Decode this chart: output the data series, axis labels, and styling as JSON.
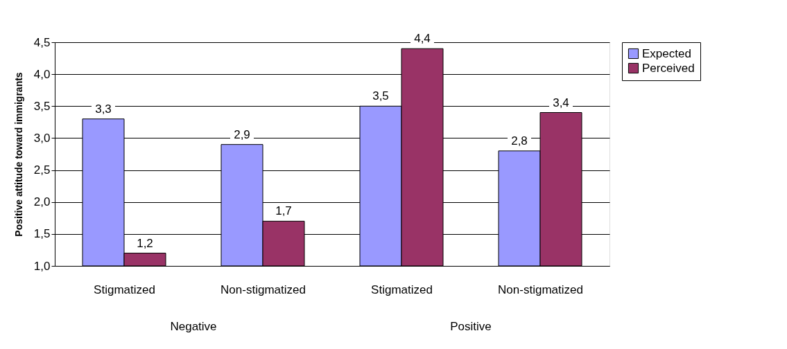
{
  "chart_data": {
    "type": "bar",
    "ylabel": "Positive attitude toward immigrants",
    "categories": [
      "Stigmatized",
      "Non-stigmatized",
      "Stigmatized",
      "Non-stigmatized"
    ],
    "series": [
      {
        "name": "Expected",
        "color": "#9999ff",
        "values": [
          3.3,
          2.9,
          3.5,
          2.8
        ],
        "value_labels": [
          "3,3",
          "2,9",
          "3,5",
          "2,8"
        ]
      },
      {
        "name": "Perceived",
        "color": "#993366",
        "values": [
          1.2,
          1.7,
          4.4,
          3.4
        ],
        "value_labels": [
          "1,2",
          "1,7",
          "4,4",
          "3,4"
        ]
      }
    ],
    "annotations": [
      "Negative",
      "Positive"
    ],
    "ylim": [
      1.0,
      4.5
    ],
    "yticks": [
      {
        "value": 1.0,
        "label": "1,0"
      },
      {
        "value": 1.5,
        "label": "1,5"
      },
      {
        "value": 2.0,
        "label": "2,0"
      },
      {
        "value": 2.5,
        "label": "2,5"
      },
      {
        "value": 3.0,
        "label": "3,0"
      },
      {
        "value": 3.5,
        "label": "3,5"
      },
      {
        "value": 4.0,
        "label": "4,0"
      },
      {
        "value": 4.5,
        "label": "4,5"
      }
    ],
    "grid": "y",
    "legend": "right"
  }
}
